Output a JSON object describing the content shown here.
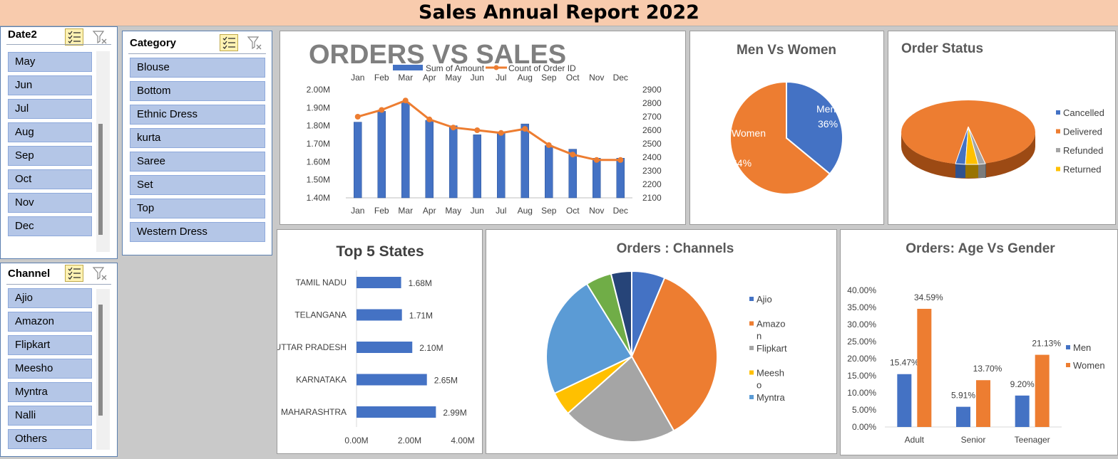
{
  "title": "Sales Annual Report 2022",
  "slicers": {
    "date": {
      "header": "Date2",
      "items": [
        "May",
        "Jun",
        "Jul",
        "Aug",
        "Sep",
        "Oct",
        "Nov",
        "Dec"
      ]
    },
    "category": {
      "header": "Category",
      "items": [
        "Blouse",
        "Bottom",
        "Ethnic Dress",
        "kurta",
        "Saree",
        "Set",
        "Top",
        "Western Dress"
      ]
    },
    "channel": {
      "header": "Channel",
      "items": [
        "Ajio",
        "Amazon",
        "Flipkart",
        "Meesho",
        "Myntra",
        "Nalli",
        "Others"
      ]
    }
  },
  "colors": {
    "blue": "#4472c4",
    "orange": "#ed7d31",
    "gray": "#a5a5a5",
    "yellow": "#ffc000",
    "lightblue": "#5b9bd5",
    "green": "#70ad47",
    "navy": "#264478",
    "slicer_item": "#b4c6e7",
    "banner": "#f8cbad"
  },
  "chart_data": [
    {
      "type": "bar",
      "title": "ORDERS VS SALES",
      "categories": [
        "Jan",
        "Feb",
        "Mar",
        "Apr",
        "May",
        "Jun",
        "Jul",
        "Aug",
        "Sep",
        "Oct",
        "Nov",
        "Dec"
      ],
      "series": [
        {
          "name": "Sum of Amount",
          "type": "bar",
          "axis": "left",
          "values": [
            1.82,
            1.88,
            1.93,
            1.83,
            1.8,
            1.75,
            1.76,
            1.81,
            1.69,
            1.67,
            1.62,
            1.62
          ]
        },
        {
          "name": "Count of Order ID",
          "type": "line",
          "axis": "right",
          "values": [
            2700,
            2750,
            2820,
            2680,
            2620,
            2600,
            2580,
            2610,
            2490,
            2420,
            2380,
            2380
          ]
        }
      ],
      "y_ticks": [
        "1.40M",
        "1.50M",
        "1.60M",
        "1.70M",
        "1.80M",
        "1.90M",
        "2.00M"
      ],
      "y2_ticks": [
        "2100",
        "2200",
        "2300",
        "2400",
        "2500",
        "2600",
        "2700",
        "2800",
        "2900"
      ],
      "ylim": [
        1.4,
        2.0
      ],
      "y2lim": [
        2100,
        2900
      ],
      "legend": "top",
      "grid": false
    },
    {
      "type": "pie",
      "title": "Men Vs Women",
      "slices": [
        {
          "label": "Men",
          "value": 36,
          "value_label": "36%"
        },
        {
          "label": "Women",
          "value": 64,
          "value_label": "64%"
        }
      ]
    },
    {
      "type": "pie",
      "title": "Order Status",
      "slices": [
        {
          "label": "Cancelled",
          "value": 3
        },
        {
          "label": "Delivered",
          "value": 92
        },
        {
          "label": "Refunded",
          "value": 2
        },
        {
          "label": "Returned",
          "value": 3
        }
      ],
      "legend": "right"
    },
    {
      "type": "bar",
      "orientation": "horizontal",
      "title": "Top 5 States",
      "categories": [
        "TAMIL NADU",
        "TELANGANA",
        "UTTAR PRADESH",
        "KARNATAKA",
        "MAHARASHTRA"
      ],
      "values": [
        1.68,
        1.71,
        2.1,
        2.65,
        2.99
      ],
      "value_labels": [
        "1.68M",
        "1.71M",
        "2.10M",
        "2.65M",
        "2.99M"
      ],
      "x_ticks": [
        "0.00M",
        "2.00M",
        "4.00M"
      ],
      "xlim": [
        0,
        4
      ]
    },
    {
      "type": "pie",
      "title": "Orders : Channels",
      "slices": [
        {
          "label": "Ajio",
          "value": 6.3
        },
        {
          "label": "Amazon",
          "value": 35.5
        },
        {
          "label": "Flipkart",
          "value": 21.6
        },
        {
          "label": "Meesho",
          "value": 4.5
        },
        {
          "label": "Myntra",
          "value": 23.3
        },
        {
          "label": "Nalli",
          "value": 4.9
        },
        {
          "label": "Others",
          "value": 3.9
        }
      ],
      "legend_items": [
        {
          "color": "blue",
          "lines": [
            "Ajio"
          ]
        },
        {
          "color": "orange",
          "lines": [
            "Amazo",
            "n"
          ]
        },
        {
          "color": "gray",
          "lines": [
            "Flipkart"
          ]
        },
        {
          "color": "yellow",
          "lines": [
            "Meesh",
            "o"
          ]
        },
        {
          "color": "lightblue",
          "lines": [
            "Myntra"
          ]
        }
      ],
      "legend": "right"
    },
    {
      "type": "bar",
      "title": "Orders: Age Vs Gender",
      "categories": [
        "Adult",
        "Senior",
        "Teenager"
      ],
      "series": [
        {
          "name": "Men",
          "values": [
            15.47,
            5.91,
            9.2
          ],
          "labels": [
            "15.47%",
            "5.91%",
            "9.20%"
          ]
        },
        {
          "name": "Women",
          "values": [
            34.59,
            13.7,
            21.13
          ],
          "labels": [
            "34.59%",
            "13.70%",
            "21.13%"
          ]
        }
      ],
      "y_ticks": [
        "0.00%",
        "5.00%",
        "10.00%",
        "15.00%",
        "20.00%",
        "25.00%",
        "30.00%",
        "35.00%",
        "40.00%"
      ],
      "ylim": [
        0,
        40
      ],
      "legend": "right"
    }
  ]
}
